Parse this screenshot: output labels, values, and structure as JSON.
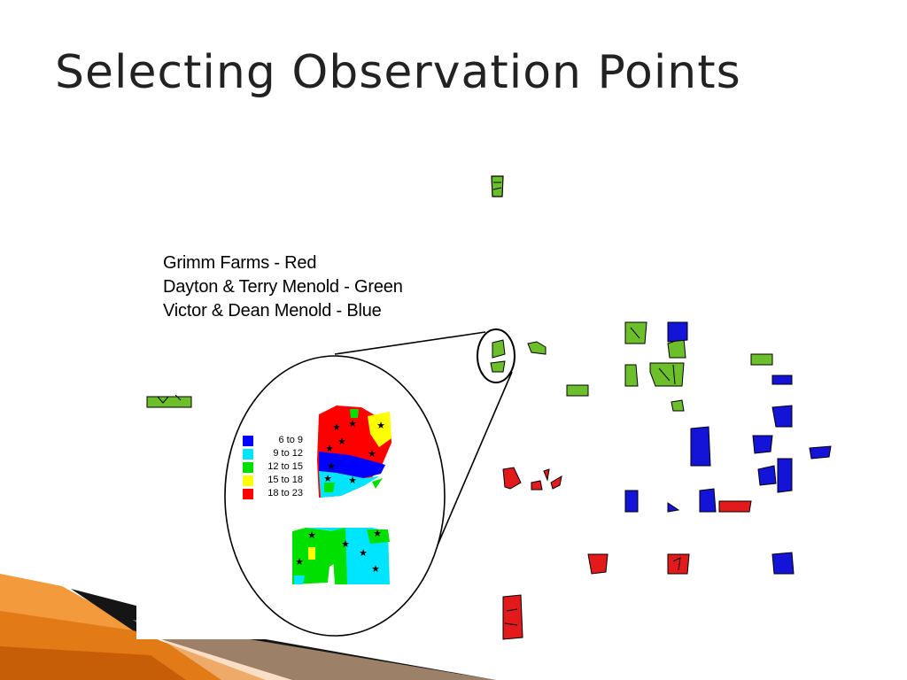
{
  "slide": {
    "title": "Selecting Observation Points",
    "accent_colors": [
      "#f39c3a",
      "#e07812",
      "#c85f08",
      "#1a1a1a"
    ]
  },
  "map": {
    "owners": [
      {
        "label": "Grimm Farms - Red",
        "color": "#e31a1c"
      },
      {
        "label": "Dayton & Terry Menold - Green",
        "color": "#6cbf2a"
      },
      {
        "label": "Victor & Dean Menold - Blue",
        "color": "#1414d9"
      }
    ],
    "legend": [
      {
        "label": "6 to  9",
        "color": "#0000ff"
      },
      {
        "label": "9 to 12",
        "color": "#00e5ff"
      },
      {
        "label": "12 to 15",
        "color": "#00e000"
      },
      {
        "label": "15 to 18",
        "color": "#ffff00"
      },
      {
        "label": "18 to 23",
        "color": "#ff0000"
      }
    ],
    "observation_point_icon": "star-marker"
  }
}
